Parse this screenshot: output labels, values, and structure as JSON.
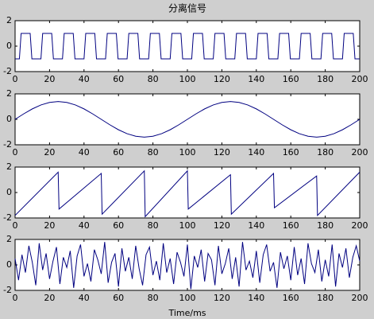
{
  "chart_data": [
    {
      "type": "line",
      "title": "分离信号",
      "xlim": [
        0,
        200
      ],
      "ylim": [
        -2,
        2
      ],
      "xticks": [
        0,
        20,
        40,
        60,
        80,
        100,
        120,
        140,
        160,
        180,
        200
      ],
      "yticks": [
        -2,
        0,
        2
      ],
      "x": [
        0,
        2.5,
        3.5,
        8.75,
        9.75,
        15,
        16,
        21.25,
        22.25,
        27.5,
        28.5,
        33.75,
        34.75,
        40,
        41,
        46.25,
        47.25,
        52.5,
        53.5,
        58.75,
        59.75,
        65,
        66,
        71.25,
        72.25,
        77.5,
        78.5,
        83.75,
        84.75,
        90,
        91,
        96.25,
        97.25,
        102.5,
        103.5,
        108.75,
        109.75,
        115,
        116,
        121.25,
        122.25,
        127.5,
        128.5,
        133.75,
        134.75,
        140,
        141,
        146.25,
        147.25,
        152.5,
        153.5,
        158.75,
        159.75,
        165,
        166,
        171.25,
        172.25,
        177.5,
        178.5,
        183.75,
        184.75,
        190,
        191,
        196.25,
        197.25,
        200
      ],
      "series": [
        {
          "color": "#000080",
          "values": [
            -1,
            -1,
            1,
            1,
            -1,
            -1,
            1,
            1,
            -1,
            -1,
            1,
            1,
            -1,
            -1,
            1,
            1,
            -1,
            -1,
            1,
            1,
            -1,
            -1,
            1,
            1,
            -1,
            -1,
            1,
            1,
            -1,
            -1,
            1,
            1,
            -1,
            -1,
            1,
            1,
            -1,
            -1,
            1,
            1,
            -1,
            -1,
            1,
            1,
            -1,
            -1,
            1,
            1,
            -1,
            -1,
            1,
            1,
            -1,
            -1,
            1,
            1,
            -1,
            -1,
            1,
            1,
            -1,
            -1,
            1,
            1,
            -1,
            -1
          ]
        }
      ]
    },
    {
      "type": "line",
      "xlim": [
        0,
        200
      ],
      "ylim": [
        -2,
        2
      ],
      "xticks": [
        0,
        20,
        40,
        60,
        80,
        100,
        120,
        140,
        160,
        180,
        200
      ],
      "yticks": [
        -2,
        0,
        2
      ],
      "x": [
        0,
        5,
        10,
        15,
        20,
        25,
        30,
        35,
        40,
        45,
        50,
        55,
        60,
        65,
        70,
        75,
        80,
        85,
        90,
        95,
        100,
        105,
        110,
        115,
        120,
        125,
        130,
        135,
        140,
        145,
        150,
        155,
        160,
        165,
        170,
        175,
        180,
        185,
        190,
        195,
        200
      ],
      "series": [
        {
          "color": "#000080",
          "values": [
            0,
            0.43,
            0.82,
            1.13,
            1.33,
            1.4,
            1.33,
            1.13,
            0.82,
            0.43,
            0,
            -0.43,
            -0.82,
            -1.13,
            -1.33,
            -1.4,
            -1.33,
            -1.13,
            -0.82,
            -0.43,
            0,
            0.43,
            0.82,
            1.13,
            1.33,
            1.4,
            1.33,
            1.13,
            0.82,
            0.43,
            0,
            -0.43,
            -0.82,
            -1.13,
            -1.33,
            -1.4,
            -1.33,
            -1.13,
            -0.82,
            -0.43,
            0
          ]
        }
      ]
    },
    {
      "type": "line",
      "xlim": [
        0,
        200
      ],
      "ylim": [
        -2,
        2
      ],
      "xticks": [
        0,
        20,
        40,
        60,
        80,
        100,
        120,
        140,
        160,
        180,
        200
      ],
      "yticks": [
        -2,
        0,
        2
      ],
      "x": [
        0,
        25,
        25.5,
        50,
        50.5,
        75,
        75.5,
        100,
        100.5,
        125,
        125.5,
        150,
        150.5,
        175,
        175.5,
        200
      ],
      "series": [
        {
          "color": "#000080",
          "values": [
            -1.8,
            1.6,
            -1.3,
            1.5,
            -1.7,
            1.7,
            -1.9,
            1.7,
            -1.3,
            1.4,
            -1.7,
            1.5,
            -1.2,
            1.3,
            -1.8,
            1.6
          ]
        }
      ]
    },
    {
      "type": "line",
      "xlabel": "Time/ms",
      "xlim": [
        0,
        200
      ],
      "ylim": [
        -2,
        2
      ],
      "xticks": [
        0,
        20,
        40,
        60,
        80,
        100,
        120,
        140,
        160,
        180,
        200
      ],
      "yticks": [
        -2,
        0,
        2
      ],
      "x": [
        0,
        2,
        4,
        6,
        8,
        10,
        12,
        14,
        16,
        18,
        20,
        22,
        24,
        26,
        28,
        30,
        32,
        34,
        36,
        38,
        40,
        42,
        44,
        46,
        48,
        50,
        52,
        54,
        56,
        58,
        60,
        62,
        64,
        66,
        68,
        70,
        72,
        74,
        76,
        78,
        80,
        82,
        84,
        86,
        88,
        90,
        92,
        94,
        96,
        98,
        100,
        102,
        104,
        106,
        108,
        110,
        112,
        114,
        116,
        118,
        120,
        122,
        124,
        126,
        128,
        130,
        132,
        134,
        136,
        138,
        140,
        142,
        144,
        146,
        148,
        150,
        152,
        154,
        156,
        158,
        160,
        162,
        164,
        166,
        168,
        170,
        172,
        174,
        176,
        178,
        180,
        182,
        184,
        186,
        188,
        190,
        192,
        194,
        196,
        198,
        200
      ],
      "series": [
        {
          "color": "#000080",
          "values": [
            0.5,
            -1.2,
            0.8,
            -0.6,
            1.5,
            0.2,
            -1.6,
            1.7,
            -0.4,
            0.9,
            -1.1,
            0.3,
            1.4,
            -1.5,
            0.6,
            -0.2,
            1.1,
            -1.8,
            0.7,
            1.6,
            -0.9,
            0.1,
            -1.3,
            1.2,
            0.4,
            -0.7,
            1.8,
            -1.4,
            0.2,
            0.9,
            -1.7,
            1.3,
            -0.5,
            0.6,
            -1.1,
            1.5,
            -0.3,
            -1.6,
            0.8,
            1.4,
            -0.8,
            0.3,
            -1.2,
            1.7,
            -0.6,
            0.5,
            -1.5,
            1.0,
            0.2,
            -0.9,
            1.6,
            -1.9,
            0.7,
            -0.2,
            1.2,
            -1.3,
            0.9,
            0.4,
            -1.6,
            1.5,
            -0.7,
            0.1,
            1.3,
            -1.1,
            0.6,
            -1.7,
            1.8,
            -0.4,
            0.3,
            -1.0,
            1.1,
            -1.4,
            0.8,
            1.6,
            -0.5,
            0.2,
            -1.8,
            1.0,
            -0.3,
            0.7,
            -1.2,
            1.4,
            -0.8,
            0.5,
            -1.5,
            1.7,
            0.1,
            -0.6,
            1.2,
            -1.3,
            0.4,
            -0.9,
            1.6,
            -1.7,
            0.9,
            -0.2,
            1.3,
            -1.0,
            0.6,
            1.5,
            0.3
          ]
        }
      ]
    }
  ]
}
